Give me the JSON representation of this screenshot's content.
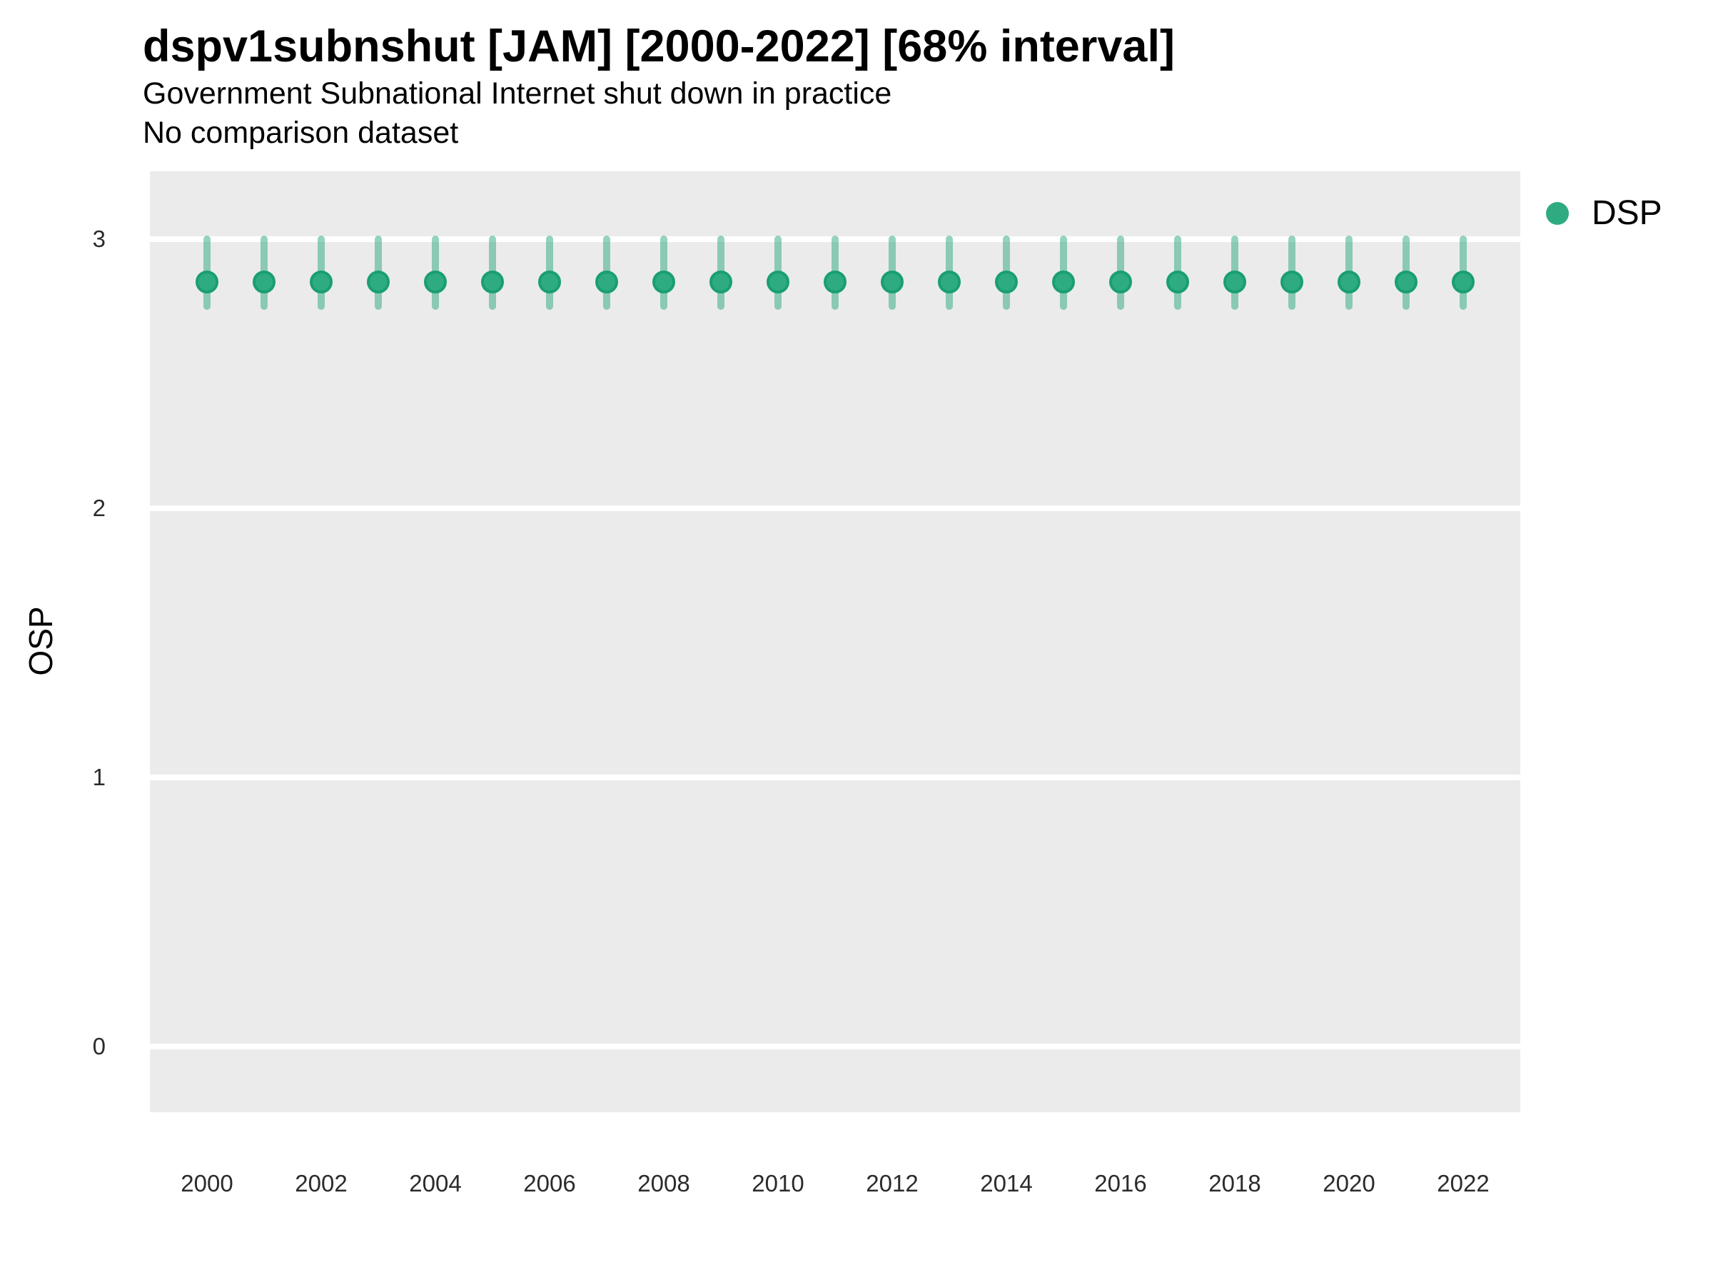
{
  "header": {
    "title": "dspv1subnshut [JAM] [2000-2022] [68% interval]",
    "subtitle": "Government Subnational Internet shut down in practice",
    "subtitle2": "No comparison dataset"
  },
  "chart_data": {
    "type": "scatter",
    "title": "dspv1subnshut [JAM] [2000-2022] [68% interval]",
    "subtitle": "Government Subnational Internet shut down in practice",
    "note": "No comparison dataset",
    "xlabel": "",
    "ylabel": "OSP",
    "x": [
      2000,
      2001,
      2002,
      2003,
      2004,
      2005,
      2006,
      2007,
      2008,
      2009,
      2010,
      2011,
      2012,
      2013,
      2014,
      2015,
      2016,
      2017,
      2018,
      2019,
      2020,
      2021,
      2022
    ],
    "series": [
      {
        "name": "DSP",
        "est": [
          2.84,
          2.84,
          2.84,
          2.84,
          2.84,
          2.84,
          2.84,
          2.84,
          2.84,
          2.84,
          2.84,
          2.84,
          2.84,
          2.84,
          2.84,
          2.84,
          2.84,
          2.84,
          2.84,
          2.84,
          2.84,
          2.84,
          2.84
        ],
        "lo": [
          2.75,
          2.75,
          2.75,
          2.75,
          2.75,
          2.75,
          2.75,
          2.75,
          2.75,
          2.75,
          2.75,
          2.75,
          2.75,
          2.75,
          2.75,
          2.75,
          2.75,
          2.75,
          2.75,
          2.75,
          2.75,
          2.75,
          2.75
        ],
        "hi": [
          3.0,
          3.0,
          3.0,
          3.0,
          3.0,
          3.0,
          3.0,
          3.0,
          3.0,
          3.0,
          3.0,
          3.0,
          3.0,
          3.0,
          3.0,
          3.0,
          3.0,
          3.0,
          3.0,
          3.0,
          3.0,
          3.0,
          3.0
        ]
      }
    ],
    "interval_level": "68%",
    "yticks": [
      3,
      2,
      1,
      0
    ],
    "xticks": [
      2000,
      2002,
      2004,
      2006,
      2008,
      2010,
      2012,
      2014,
      2016,
      2018,
      2020,
      2022
    ],
    "ylim": [
      -0.24,
      3.25
    ],
    "xlim": [
      1999,
      2023
    ],
    "grid": "horizontal-major-white",
    "legend_position": "right-top",
    "panel_bg": "#ebebeb",
    "gridline_color": "#ffffff",
    "point_color": "#2fab82",
    "point_stroke": "#1a9e74",
    "interval_color": "rgba(42,168,126,0.5)"
  }
}
